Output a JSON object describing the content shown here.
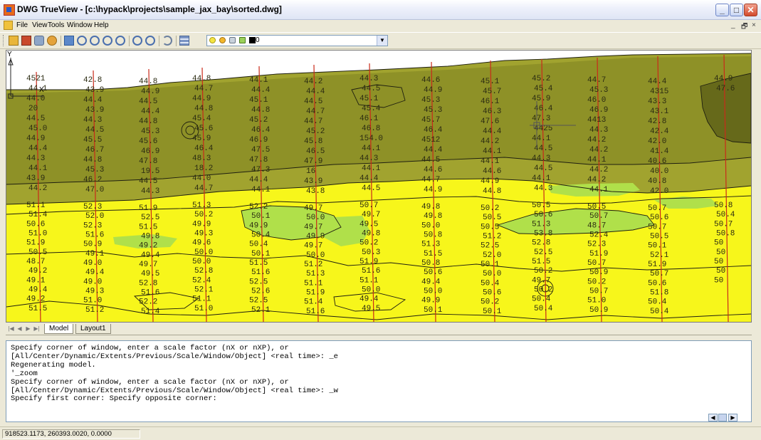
{
  "window": {
    "title": "DWG TrueView - [c:\\hypack\\projects\\sample_jax_bay\\sorted.dwg]",
    "min_glyph": "_",
    "max_glyph": "□",
    "close_glyph": "✕",
    "mdi_min": "_",
    "mdi_restore": "🗗",
    "mdi_close": "×"
  },
  "menu": {
    "items": [
      "File",
      "View",
      "Tools",
      "Window",
      "Help"
    ]
  },
  "toolbar": {
    "icons": [
      "open-icon",
      "publish-icon",
      "batch-plot-icon",
      "markup-icon",
      "pan-icon",
      "zoom-realtime-icon",
      "zoom-window-icon",
      "zoom-extents-icon",
      "zoom-previous-icon",
      "zoom-in-icon",
      "zoom-out-icon",
      "orbit-icon",
      "layers-icon"
    ],
    "layer_name": "0",
    "layer_icons": [
      "bulb-icon",
      "sun-icon",
      "lock-icon",
      "color-swatch-icon"
    ]
  },
  "drawing": {
    "colors": {
      "deep": "#7f8422",
      "mid": "#a1a32f",
      "yellow": "#f7f61b",
      "green": "#b0e04a",
      "line": "#c92a1a",
      "text": "#2b2b12",
      "contour": "#1e1e10"
    },
    "crosshair": "crosshair-cursor"
  },
  "ucs": {
    "x": "X",
    "y": "Y"
  },
  "tabs": {
    "model": "Model",
    "layout1": "Layout1"
  },
  "command": {
    "history": [
      "Specify corner of window, enter a scale factor (nX or nXP), or",
      "[All/Center/Dynamic/Extents/Previous/Scale/Window/Object] <real time>: _e",
      "Regenerating model.",
      "'_zoom",
      "Specify corner of window, enter a scale factor (nX or nXP), or",
      "[All/Center/Dynamic/Extents/Previous/Scale/Window/Object] <real time>: _w",
      "Specify first corner: Specify opposite corner:"
    ],
    "input": ""
  },
  "status": {
    "coordinates": "918523.1173, 260393.0020, 0.0000"
  },
  "soundings": [
    {
      "t": "4521",
      "c": "dark"
    },
    {
      "t": "44.1",
      "c": "dark"
    },
    {
      "t": "44.0",
      "c": "dark"
    },
    {
      "t": "20",
      "c": "dark"
    },
    {
      "t": "44.5",
      "c": "dark"
    },
    {
      "t": "45.0",
      "c": "dark"
    },
    {
      "t": "44.9",
      "c": "dark"
    },
    {
      "t": "44.4",
      "c": "dark"
    },
    {
      "t": "44.3",
      "c": "dark"
    },
    {
      "t": "44.1",
      "c": "dark"
    },
    {
      "t": "43.9",
      "c": "dark"
    },
    {
      "t": "44.2",
      "c": "dark"
    },
    {
      "t": "42.8",
      "c": "dark"
    },
    {
      "t": "43.9",
      "c": "dark"
    },
    {
      "t": "44.4",
      "c": "dark"
    },
    {
      "t": "43.9",
      "c": "dark"
    },
    {
      "t": "44.3",
      "c": "dark"
    },
    {
      "t": "44.5",
      "c": "dark"
    },
    {
      "t": "45.5",
      "c": "dark"
    },
    {
      "t": "46.7",
      "c": "dark"
    },
    {
      "t": "44.8",
      "c": "dark"
    },
    {
      "t": "45.3",
      "c": "dark"
    },
    {
      "t": "46.2",
      "c": "dark"
    },
    {
      "t": "47.0",
      "c": "dark"
    },
    {
      "t": "44.8",
      "c": "dark"
    },
    {
      "t": "44.9",
      "c": "dark"
    },
    {
      "t": "44.5",
      "c": "dark"
    },
    {
      "t": "44.4",
      "c": "dark"
    },
    {
      "t": "44.8",
      "c": "dark"
    },
    {
      "t": "45.3",
      "c": "dark"
    },
    {
      "t": "45.6",
      "c": "dark"
    },
    {
      "t": "46.9",
      "c": "dark"
    },
    {
      "t": "47.8",
      "c": "dark"
    },
    {
      "t": "19.5",
      "c": "dark"
    },
    {
      "t": "44.5",
      "c": "dark"
    },
    {
      "t": "44.3",
      "c": "dark"
    },
    {
      "t": "44.8",
      "c": "dark"
    },
    {
      "t": "44.7",
      "c": "dark"
    },
    {
      "t": "44.9",
      "c": "dark"
    },
    {
      "t": "44.8",
      "c": "dark"
    },
    {
      "t": "45.4",
      "c": "dark"
    },
    {
      "t": "45.6",
      "c": "dark"
    },
    {
      "t": "45.9",
      "c": "dark"
    },
    {
      "t": "46.4",
      "c": "dark"
    },
    {
      "t": "48.3",
      "c": "dark"
    },
    {
      "t": "18.2",
      "c": "dark"
    },
    {
      "t": "44.0",
      "c": "dark"
    },
    {
      "t": "44.7",
      "c": "dark"
    },
    {
      "t": "44.1",
      "c": "dark"
    },
    {
      "t": "44.4",
      "c": "dark"
    },
    {
      "t": "45.1",
      "c": "dark"
    },
    {
      "t": "44.8",
      "c": "dark"
    },
    {
      "t": "45.2",
      "c": "dark"
    },
    {
      "t": "46.4",
      "c": "dark"
    },
    {
      "t": "46.9",
      "c": "dark"
    },
    {
      "t": "47.5",
      "c": "dark"
    },
    {
      "t": "47.8",
      "c": "dark"
    },
    {
      "t": "47.3",
      "c": "dark"
    },
    {
      "t": "44.4",
      "c": "dark"
    },
    {
      "t": "44.1",
      "c": "dark"
    },
    {
      "t": "44.2",
      "c": "dark"
    },
    {
      "t": "44.4",
      "c": "dark"
    },
    {
      "t": "44.5",
      "c": "dark"
    },
    {
      "t": "44.7",
      "c": "dark"
    },
    {
      "t": "44.7",
      "c": "dark"
    },
    {
      "t": "45.2",
      "c": "dark"
    },
    {
      "t": "45.8",
      "c": "dark"
    },
    {
      "t": "46.5",
      "c": "dark"
    },
    {
      "t": "47.9",
      "c": "dark"
    },
    {
      "t": "16",
      "c": "dark"
    },
    {
      "t": "43.9",
      "c": "dark"
    },
    {
      "t": "43.8",
      "c": "dark"
    },
    {
      "t": "44.3",
      "c": "dark"
    },
    {
      "t": "44.5",
      "c": "dark"
    },
    {
      "t": "45.1",
      "c": "dark"
    },
    {
      "t": "45.4",
      "c": "dark"
    },
    {
      "t": "46.1",
      "c": "dark"
    },
    {
      "t": "46.8",
      "c": "dark"
    },
    {
      "t": "154.0",
      "c": "dark"
    },
    {
      "t": "44.1",
      "c": "dark"
    },
    {
      "t": "44.3",
      "c": "dark"
    },
    {
      "t": "44.1",
      "c": "dark"
    },
    {
      "t": "44.4",
      "c": "dark"
    },
    {
      "t": "44.5",
      "c": "dark"
    },
    {
      "t": "44.6",
      "c": "dark"
    },
    {
      "t": "44.9",
      "c": "dark"
    },
    {
      "t": "45.3",
      "c": "dark"
    },
    {
      "t": "45.3",
      "c": "dark"
    },
    {
      "t": "45.7",
      "c": "dark"
    },
    {
      "t": "46.4",
      "c": "dark"
    },
    {
      "t": "4512",
      "c": "dark"
    },
    {
      "t": "44.4",
      "c": "dark"
    },
    {
      "t": "44.5",
      "c": "dark"
    },
    {
      "t": "44.6",
      "c": "dark"
    },
    {
      "t": "44.7",
      "c": "dark"
    },
    {
      "t": "44.9",
      "c": "dark"
    },
    {
      "t": "45.1",
      "c": "dark"
    },
    {
      "t": "45.7",
      "c": "dark"
    },
    {
      "t": "46.1",
      "c": "dark"
    },
    {
      "t": "46.3",
      "c": "dark"
    },
    {
      "t": "47.6",
      "c": "dark"
    },
    {
      "t": "44.4",
      "c": "dark"
    },
    {
      "t": "44.2",
      "c": "dark"
    },
    {
      "t": "44.1",
      "c": "dark"
    },
    {
      "t": "44.1",
      "c": "dark"
    },
    {
      "t": "44.6",
      "c": "dark"
    },
    {
      "t": "44.9",
      "c": "dark"
    },
    {
      "t": "44.8",
      "c": "dark"
    },
    {
      "t": "45.2",
      "c": "dark"
    },
    {
      "t": "45.4",
      "c": "dark"
    },
    {
      "t": "45.9",
      "c": "dark"
    },
    {
      "t": "46.4",
      "c": "dark"
    },
    {
      "t": "47.3",
      "c": "dark"
    },
    {
      "t": "4425",
      "c": "dark"
    },
    {
      "t": "44.1",
      "c": "dark"
    },
    {
      "t": "44.5",
      "c": "dark"
    },
    {
      "t": "44.3",
      "c": "dark"
    },
    {
      "t": "44.5",
      "c": "dark"
    },
    {
      "t": "44.1",
      "c": "dark"
    },
    {
      "t": "44.3",
      "c": "dark"
    },
    {
      "t": "44.7",
      "c": "dark"
    },
    {
      "t": "45.3",
      "c": "dark"
    },
    {
      "t": "46.0",
      "c": "dark"
    },
    {
      "t": "46.9",
      "c": "dark"
    },
    {
      "t": "4413",
      "c": "dark"
    },
    {
      "t": "44.3",
      "c": "dark"
    },
    {
      "t": "44.2",
      "c": "dark"
    },
    {
      "t": "44.2",
      "c": "dark"
    },
    {
      "t": "44.1",
      "c": "dark"
    },
    {
      "t": "44.2",
      "c": "dark"
    },
    {
      "t": "44.2",
      "c": "dark"
    },
    {
      "t": "44.1",
      "c": "dark"
    },
    {
      "t": "44.4",
      "c": "dark"
    },
    {
      "t": "4315",
      "c": "dark"
    },
    {
      "t": "43.3",
      "c": "dark"
    },
    {
      "t": "43.1",
      "c": "dark"
    },
    {
      "t": "42.8",
      "c": "dark"
    },
    {
      "t": "42.4",
      "c": "dark"
    },
    {
      "t": "42.0",
      "c": "dark"
    },
    {
      "t": "41.4",
      "c": "dark"
    },
    {
      "t": "40.6",
      "c": "dark"
    },
    {
      "t": "40.0",
      "c": "dark"
    },
    {
      "t": "40.8",
      "c": "dark"
    },
    {
      "t": "42.0",
      "c": "dark"
    },
    {
      "t": "44.9",
      "c": "dark"
    },
    {
      "t": "47.6",
      "c": "dark"
    },
    {
      "t": "51.1",
      "c": "y"
    },
    {
      "t": "51.4",
      "c": "y"
    },
    {
      "t": "50.6",
      "c": "y"
    },
    {
      "t": "51.0",
      "c": "y"
    },
    {
      "t": "51.9",
      "c": "y"
    },
    {
      "t": "50.5",
      "c": "y"
    },
    {
      "t": "48.7",
      "c": "y"
    },
    {
      "t": "49.2",
      "c": "y"
    },
    {
      "t": "49.1",
      "c": "y"
    },
    {
      "t": "49.4",
      "c": "y"
    },
    {
      "t": "49.2",
      "c": "y"
    },
    {
      "t": "51.5",
      "c": "y"
    },
    {
      "t": "52.3",
      "c": "y"
    },
    {
      "t": "52.0",
      "c": "y"
    },
    {
      "t": "52.3",
      "c": "y"
    },
    {
      "t": "51.6",
      "c": "y"
    },
    {
      "t": "50.9",
      "c": "y"
    },
    {
      "t": "49.1",
      "c": "y"
    },
    {
      "t": "49.0",
      "c": "y"
    },
    {
      "t": "49.4",
      "c": "y"
    },
    {
      "t": "49.0",
      "c": "y"
    },
    {
      "t": "49.3",
      "c": "y"
    },
    {
      "t": "51.0",
      "c": "y"
    },
    {
      "t": "51.2",
      "c": "y"
    },
    {
      "t": "51.9",
      "c": "y"
    },
    {
      "t": "52.5",
      "c": "y"
    },
    {
      "t": "51.5",
      "c": "y"
    },
    {
      "t": "49.8",
      "c": "y"
    },
    {
      "t": "49.2",
      "c": "y"
    },
    {
      "t": "49.4",
      "c": "y"
    },
    {
      "t": "49.7",
      "c": "y"
    },
    {
      "t": "49.5",
      "c": "y"
    },
    {
      "t": "52.8",
      "c": "y"
    },
    {
      "t": "51.6",
      "c": "y"
    },
    {
      "t": "52.2",
      "c": "y"
    },
    {
      "t": "51.4",
      "c": "y"
    },
    {
      "t": "51.3",
      "c": "y"
    },
    {
      "t": "50.2",
      "c": "y"
    },
    {
      "t": "49.9",
      "c": "y"
    },
    {
      "t": "49.3",
      "c": "y"
    },
    {
      "t": "49.6",
      "c": "y"
    },
    {
      "t": "50.0",
      "c": "y"
    },
    {
      "t": "50.0",
      "c": "y"
    },
    {
      "t": "52.8",
      "c": "y"
    },
    {
      "t": "52.4",
      "c": "y"
    },
    {
      "t": "52.1",
      "c": "y"
    },
    {
      "t": "51.1",
      "c": "y"
    },
    {
      "t": "51.0",
      "c": "y"
    },
    {
      "t": "52.2",
      "c": "y"
    },
    {
      "t": "50.1",
      "c": "y"
    },
    {
      "t": "49.9",
      "c": "y"
    },
    {
      "t": "50.4",
      "c": "y"
    },
    {
      "t": "50.4",
      "c": "y"
    },
    {
      "t": "50.1",
      "c": "y"
    },
    {
      "t": "51.5",
      "c": "y"
    },
    {
      "t": "51.6",
      "c": "y"
    },
    {
      "t": "52.5",
      "c": "y"
    },
    {
      "t": "52.6",
      "c": "y"
    },
    {
      "t": "52.5",
      "c": "y"
    },
    {
      "t": "52.1",
      "c": "y"
    },
    {
      "t": "49.7",
      "c": "y"
    },
    {
      "t": "50.0",
      "c": "y"
    },
    {
      "t": "49.7",
      "c": "y"
    },
    {
      "t": "49.9",
      "c": "y"
    },
    {
      "t": "49.7",
      "c": "y"
    },
    {
      "t": "50.0",
      "c": "y"
    },
    {
      "t": "51.2",
      "c": "y"
    },
    {
      "t": "51.3",
      "c": "y"
    },
    {
      "t": "51.1",
      "c": "y"
    },
    {
      "t": "51.9",
      "c": "y"
    },
    {
      "t": "51.4",
      "c": "y"
    },
    {
      "t": "51.6",
      "c": "y"
    },
    {
      "t": "50.7",
      "c": "y"
    },
    {
      "t": "49.7",
      "c": "y"
    },
    {
      "t": "49.5",
      "c": "y"
    },
    {
      "t": "49.8",
      "c": "y"
    },
    {
      "t": "50.2",
      "c": "y"
    },
    {
      "t": "50.3",
      "c": "y"
    },
    {
      "t": "51.9",
      "c": "y"
    },
    {
      "t": "51.6",
      "c": "y"
    },
    {
      "t": "51.1",
      "c": "y"
    },
    {
      "t": "50.0",
      "c": "y"
    },
    {
      "t": "49.4",
      "c": "y"
    },
    {
      "t": "49.5",
      "c": "y"
    },
    {
      "t": "49.8",
      "c": "y"
    },
    {
      "t": "49.8",
      "c": "y"
    },
    {
      "t": "50.0",
      "c": "y"
    },
    {
      "t": "50.8",
      "c": "y"
    },
    {
      "t": "51.3",
      "c": "y"
    },
    {
      "t": "51.5",
      "c": "y"
    },
    {
      "t": "50.8",
      "c": "y"
    },
    {
      "t": "50.6",
      "c": "y"
    },
    {
      "t": "49.4",
      "c": "y"
    },
    {
      "t": "50.0",
      "c": "y"
    },
    {
      "t": "49.9",
      "c": "y"
    },
    {
      "t": "50.1",
      "c": "y"
    },
    {
      "t": "50.2",
      "c": "y"
    },
    {
      "t": "50.5",
      "c": "y"
    },
    {
      "t": "50.5",
      "c": "y"
    },
    {
      "t": "51.2",
      "c": "y"
    },
    {
      "t": "52.5",
      "c": "y"
    },
    {
      "t": "52.0",
      "c": "y"
    },
    {
      "t": "50.1",
      "c": "y"
    },
    {
      "t": "50.0",
      "c": "y"
    },
    {
      "t": "50.4",
      "c": "y"
    },
    {
      "t": "50.6",
      "c": "y"
    },
    {
      "t": "50.2",
      "c": "y"
    },
    {
      "t": "50.1",
      "c": "y"
    },
    {
      "t": "50.5",
      "c": "y"
    },
    {
      "t": "50.6",
      "c": "y"
    },
    {
      "t": "51.3",
      "c": "y"
    },
    {
      "t": "53.8",
      "c": "y"
    },
    {
      "t": "52.8",
      "c": "y"
    },
    {
      "t": "52.5",
      "c": "y"
    },
    {
      "t": "51.5",
      "c": "y"
    },
    {
      "t": "50.2",
      "c": "y"
    },
    {
      "t": "49.7",
      "c": "y"
    },
    {
      "t": "50.2",
      "c": "y"
    },
    {
      "t": "50.4",
      "c": "y"
    },
    {
      "t": "50.4",
      "c": "y"
    },
    {
      "t": "50.5",
      "c": "y"
    },
    {
      "t": "50.7",
      "c": "y"
    },
    {
      "t": "48.7",
      "c": "y"
    },
    {
      "t": "52.4",
      "c": "y"
    },
    {
      "t": "52.3",
      "c": "y"
    },
    {
      "t": "51.9",
      "c": "y"
    },
    {
      "t": "50.7",
      "c": "y"
    },
    {
      "t": "50.9",
      "c": "y"
    },
    {
      "t": "50.2",
      "c": "y"
    },
    {
      "t": "50.7",
      "c": "y"
    },
    {
      "t": "51.0",
      "c": "y"
    },
    {
      "t": "50.9",
      "c": "y"
    },
    {
      "t": "50.7",
      "c": "y"
    },
    {
      "t": "50.6",
      "c": "y"
    },
    {
      "t": "50.7",
      "c": "y"
    },
    {
      "t": "50.5",
      "c": "y"
    },
    {
      "t": "50.1",
      "c": "y"
    },
    {
      "t": "52.1",
      "c": "y"
    },
    {
      "t": "51.9",
      "c": "y"
    },
    {
      "t": "50.7",
      "c": "y"
    },
    {
      "t": "50.6",
      "c": "y"
    },
    {
      "t": "51.8",
      "c": "y"
    },
    {
      "t": "50.4",
      "c": "y"
    },
    {
      "t": "50.4",
      "c": "y"
    },
    {
      "t": "50.8",
      "c": "y"
    },
    {
      "t": "50.4",
      "c": "y"
    },
    {
      "t": "50.7",
      "c": "y"
    },
    {
      "t": "50.8",
      "c": "y"
    },
    {
      "t": "50",
      "c": "y"
    },
    {
      "t": "50",
      "c": "y"
    },
    {
      "t": "50",
      "c": "y"
    },
    {
      "t": "50",
      "c": "y"
    },
    {
      "t": "50",
      "c": "y"
    }
  ]
}
